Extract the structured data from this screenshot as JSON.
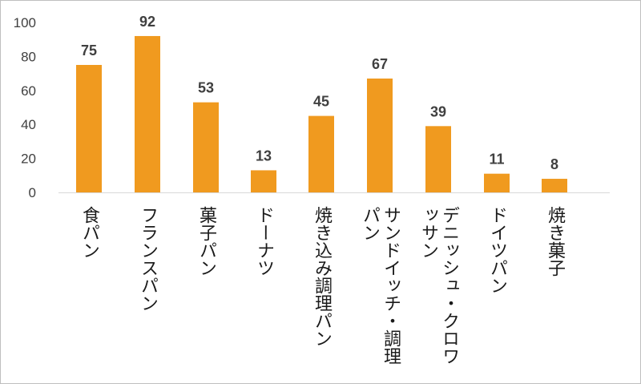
{
  "chart_data": {
    "type": "bar",
    "title": "",
    "xlabel": "",
    "ylabel": "",
    "ylim": [
      0,
      100
    ],
    "yticks": [
      0,
      20,
      40,
      60,
      80,
      100
    ],
    "grid": false,
    "legend": "none",
    "bar_color": "#f09a1f",
    "categories": [
      "食パン",
      "フランスパン",
      "菓子パン",
      "ドーナツ",
      "焼き込み調理パン",
      "サンドイッチ・調理パン",
      "デニッシュ・クロワッサン",
      "ドイツパン",
      "焼き菓子"
    ],
    "values": [
      75,
      92,
      53,
      13,
      45,
      67,
      39,
      11,
      8
    ],
    "data_labels": [
      "75",
      "92",
      "53",
      "13",
      "45",
      "67",
      "39",
      "11",
      "8"
    ]
  }
}
